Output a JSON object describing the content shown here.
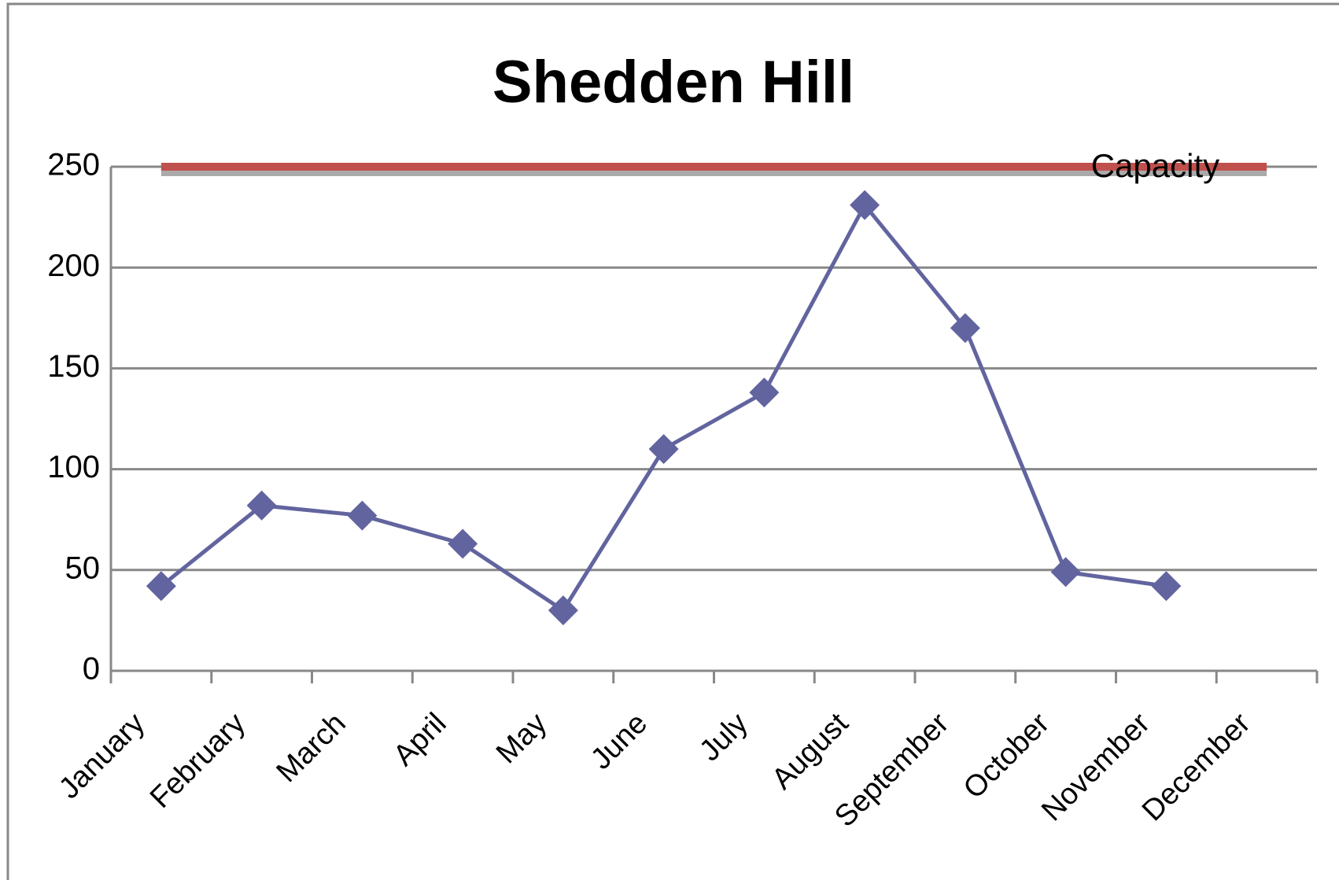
{
  "chart_data": {
    "type": "line",
    "title": "Shedden Hill",
    "categories": [
      "January",
      "February",
      "March",
      "April",
      "May",
      "June",
      "July",
      "August",
      "September",
      "October",
      "November",
      "December"
    ],
    "series": [
      {
        "color": "#62649f",
        "values": [
          42,
          82,
          77,
          63,
          30,
          110,
          138,
          231,
          170,
          49,
          42,
          null
        ]
      },
      {
        "name": "Capacity",
        "color": "#c0504d",
        "values": [
          250,
          250,
          250,
          250,
          250,
          250,
          250,
          250,
          250,
          250,
          250,
          250
        ]
      }
    ],
    "ylim": [
      0,
      250
    ],
    "yticks": [
      0,
      50,
      100,
      150,
      200,
      250
    ],
    "grid": true
  }
}
